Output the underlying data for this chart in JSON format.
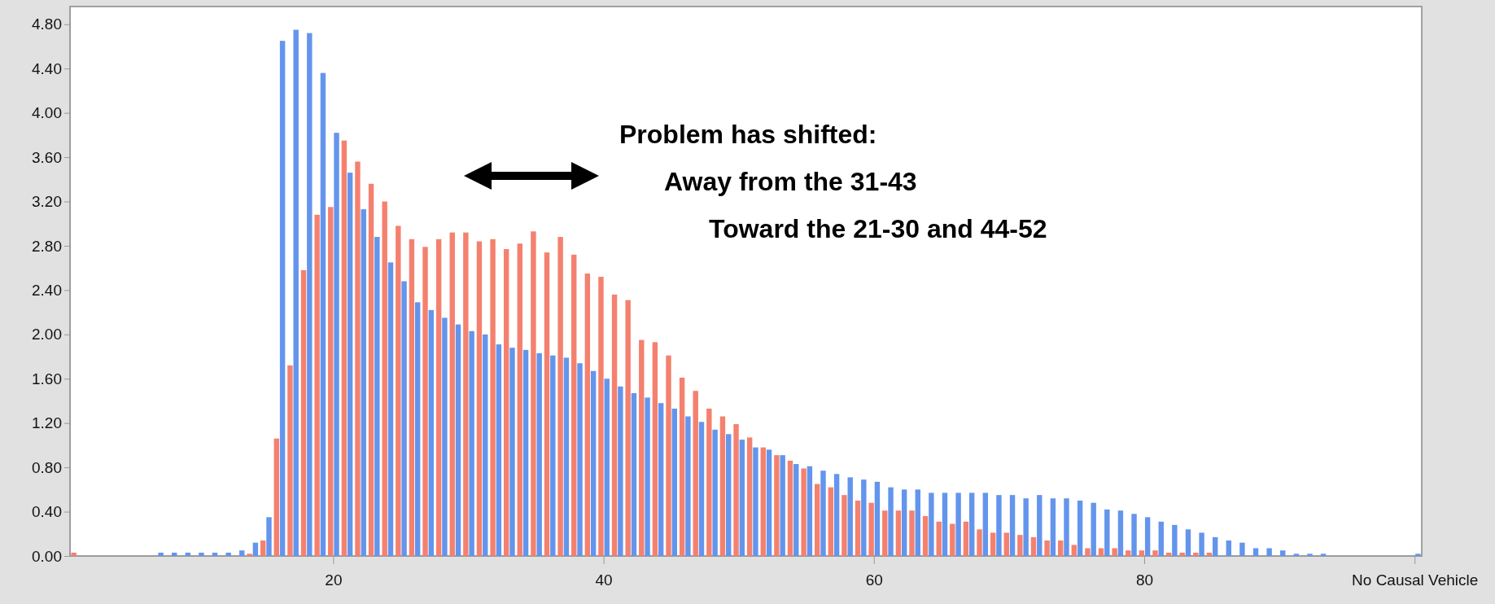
{
  "chart_data": {
    "type": "bar",
    "categories": [
      null,
      null,
      null,
      null,
      null,
      null,
      null,
      null,
      null,
      null,
      null,
      null,
      null,
      null,
      null,
      null,
      null,
      null,
      null,
      "20",
      null,
      null,
      null,
      null,
      null,
      null,
      null,
      null,
      null,
      null,
      null,
      null,
      null,
      null,
      null,
      null,
      null,
      null,
      null,
      "40",
      null,
      null,
      null,
      null,
      null,
      null,
      null,
      null,
      null,
      null,
      null,
      null,
      null,
      null,
      null,
      null,
      null,
      null,
      null,
      "60",
      null,
      null,
      null,
      null,
      null,
      null,
      null,
      null,
      null,
      null,
      null,
      null,
      null,
      null,
      null,
      null,
      null,
      null,
      null,
      "80",
      null,
      null,
      null,
      null,
      null,
      null,
      null,
      null,
      null,
      null,
      null,
      null,
      null,
      null,
      null,
      null,
      null,
      null,
      null,
      "No Causal Vehicle"
    ],
    "series": [
      {
        "color": "#f4816f",
        "values": [
          0.03,
          0,
          0,
          0,
          0,
          0,
          0,
          0,
          0,
          0,
          0,
          0,
          0,
          0.02,
          0.14,
          1.06,
          1.72,
          2.58,
          3.08,
          3.15,
          3.75,
          3.56,
          3.36,
          3.2,
          2.98,
          2.86,
          2.79,
          2.86,
          2.92,
          2.92,
          2.84,
          2.86,
          2.77,
          2.82,
          2.93,
          2.74,
          2.88,
          2.72,
          2.55,
          2.52,
          2.36,
          2.31,
          1.95,
          1.93,
          1.81,
          1.61,
          1.49,
          1.33,
          1.26,
          1.19,
          1.07,
          0.98,
          0.91,
          0.86,
          0.79,
          0.65,
          0.62,
          0.55,
          0.5,
          0.48,
          0.41,
          0.41,
          0.41,
          0.36,
          0.31,
          0.29,
          0.31,
          0.24,
          0.21,
          0.21,
          0.19,
          0.17,
          0.14,
          0.14,
          0.1,
          0.07,
          0.07,
          0.07,
          0.05,
          0.05,
          0.05,
          0.03,
          0.03,
          0.03,
          0.03,
          0,
          0,
          0,
          0,
          0,
          0,
          0,
          0,
          0,
          0,
          0,
          0,
          0,
          0,
          0
        ]
      },
      {
        "color": "#6495ed",
        "values": [
          0,
          0,
          0,
          0,
          0,
          0,
          0.03,
          0.03,
          0.03,
          0.03,
          0.03,
          0.03,
          0.05,
          0.12,
          0.35,
          4.65,
          4.75,
          4.72,
          4.36,
          3.82,
          3.46,
          3.13,
          2.88,
          2.65,
          2.48,
          2.29,
          2.22,
          2.15,
          2.09,
          2.03,
          2.0,
          1.91,
          1.88,
          1.86,
          1.83,
          1.81,
          1.79,
          1.74,
          1.67,
          1.6,
          1.53,
          1.47,
          1.43,
          1.38,
          1.33,
          1.26,
          1.21,
          1.14,
          1.1,
          1.05,
          0.98,
          0.96,
          0.91,
          0.83,
          0.81,
          0.77,
          0.74,
          0.71,
          0.69,
          0.67,
          0.62,
          0.6,
          0.6,
          0.57,
          0.57,
          0.57,
          0.57,
          0.57,
          0.55,
          0.55,
          0.52,
          0.55,
          0.52,
          0.52,
          0.5,
          0.48,
          0.42,
          0.41,
          0.38,
          0.35,
          0.31,
          0.28,
          0.24,
          0.21,
          0.17,
          0.14,
          0.12,
          0.07,
          0.07,
          0.05,
          0.02,
          0.02,
          0.02,
          0,
          0,
          0,
          0,
          0,
          0,
          0.02
        ]
      }
    ],
    "ylim": [
      0,
      4.96
    ],
    "yticks": [
      {
        "value": 0,
        "label": "0.00"
      },
      {
        "value": 0.4,
        "label": "0.40"
      },
      {
        "value": 0.8,
        "label": "0.80"
      },
      {
        "value": 1.2,
        "label": "1.20"
      },
      {
        "value": 1.6,
        "label": "1.60"
      },
      {
        "value": 2.0,
        "label": "2.00"
      },
      {
        "value": 2.4,
        "label": "2.40"
      },
      {
        "value": 2.8,
        "label": "2.80"
      },
      {
        "value": 3.2,
        "label": "3.20"
      },
      {
        "value": 3.6,
        "label": "3.60"
      },
      {
        "value": 4.0,
        "label": "4.00"
      },
      {
        "value": 4.4,
        "label": "4.40"
      },
      {
        "value": 4.8,
        "label": "4.80"
      }
    ],
    "annotations": [
      "Problem has shifted:",
      "Away from the 31-43",
      "Toward the 21-30 and 44-52"
    ]
  }
}
